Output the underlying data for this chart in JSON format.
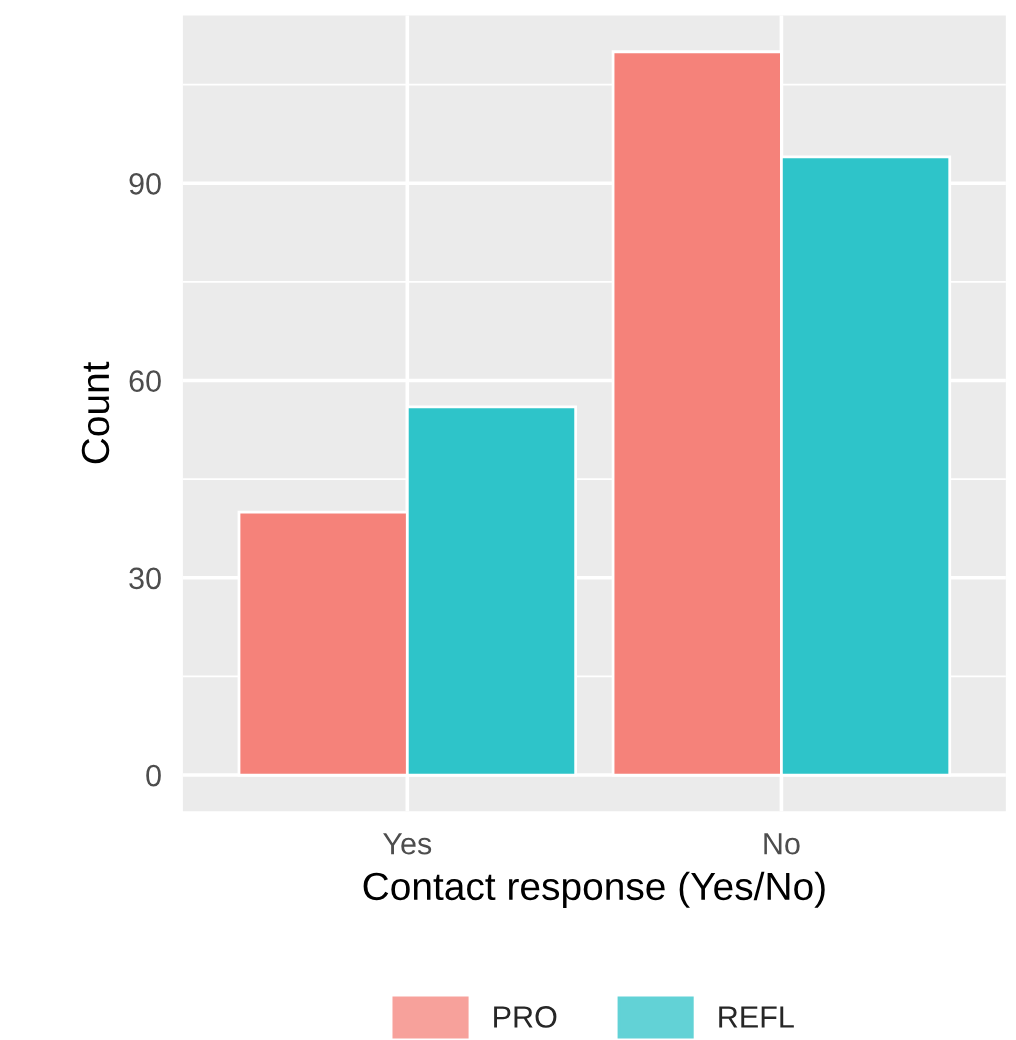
{
  "chart_data": {
    "type": "bar",
    "xlabel": "Contact response (Yes/No)",
    "ylabel": "Count",
    "categories": [
      "Yes",
      "No"
    ],
    "series": [
      {
        "name": "PRO",
        "color": "#f5827a",
        "values": [
          40,
          110
        ]
      },
      {
        "name": "REFL",
        "color": "#2ec4c9",
        "values": [
          56,
          94
        ]
      }
    ],
    "ylim": [
      -5.5,
      115.5
    ],
    "yticks": [
      0,
      30,
      60,
      90
    ],
    "grid": true,
    "legend": "bottom"
  }
}
